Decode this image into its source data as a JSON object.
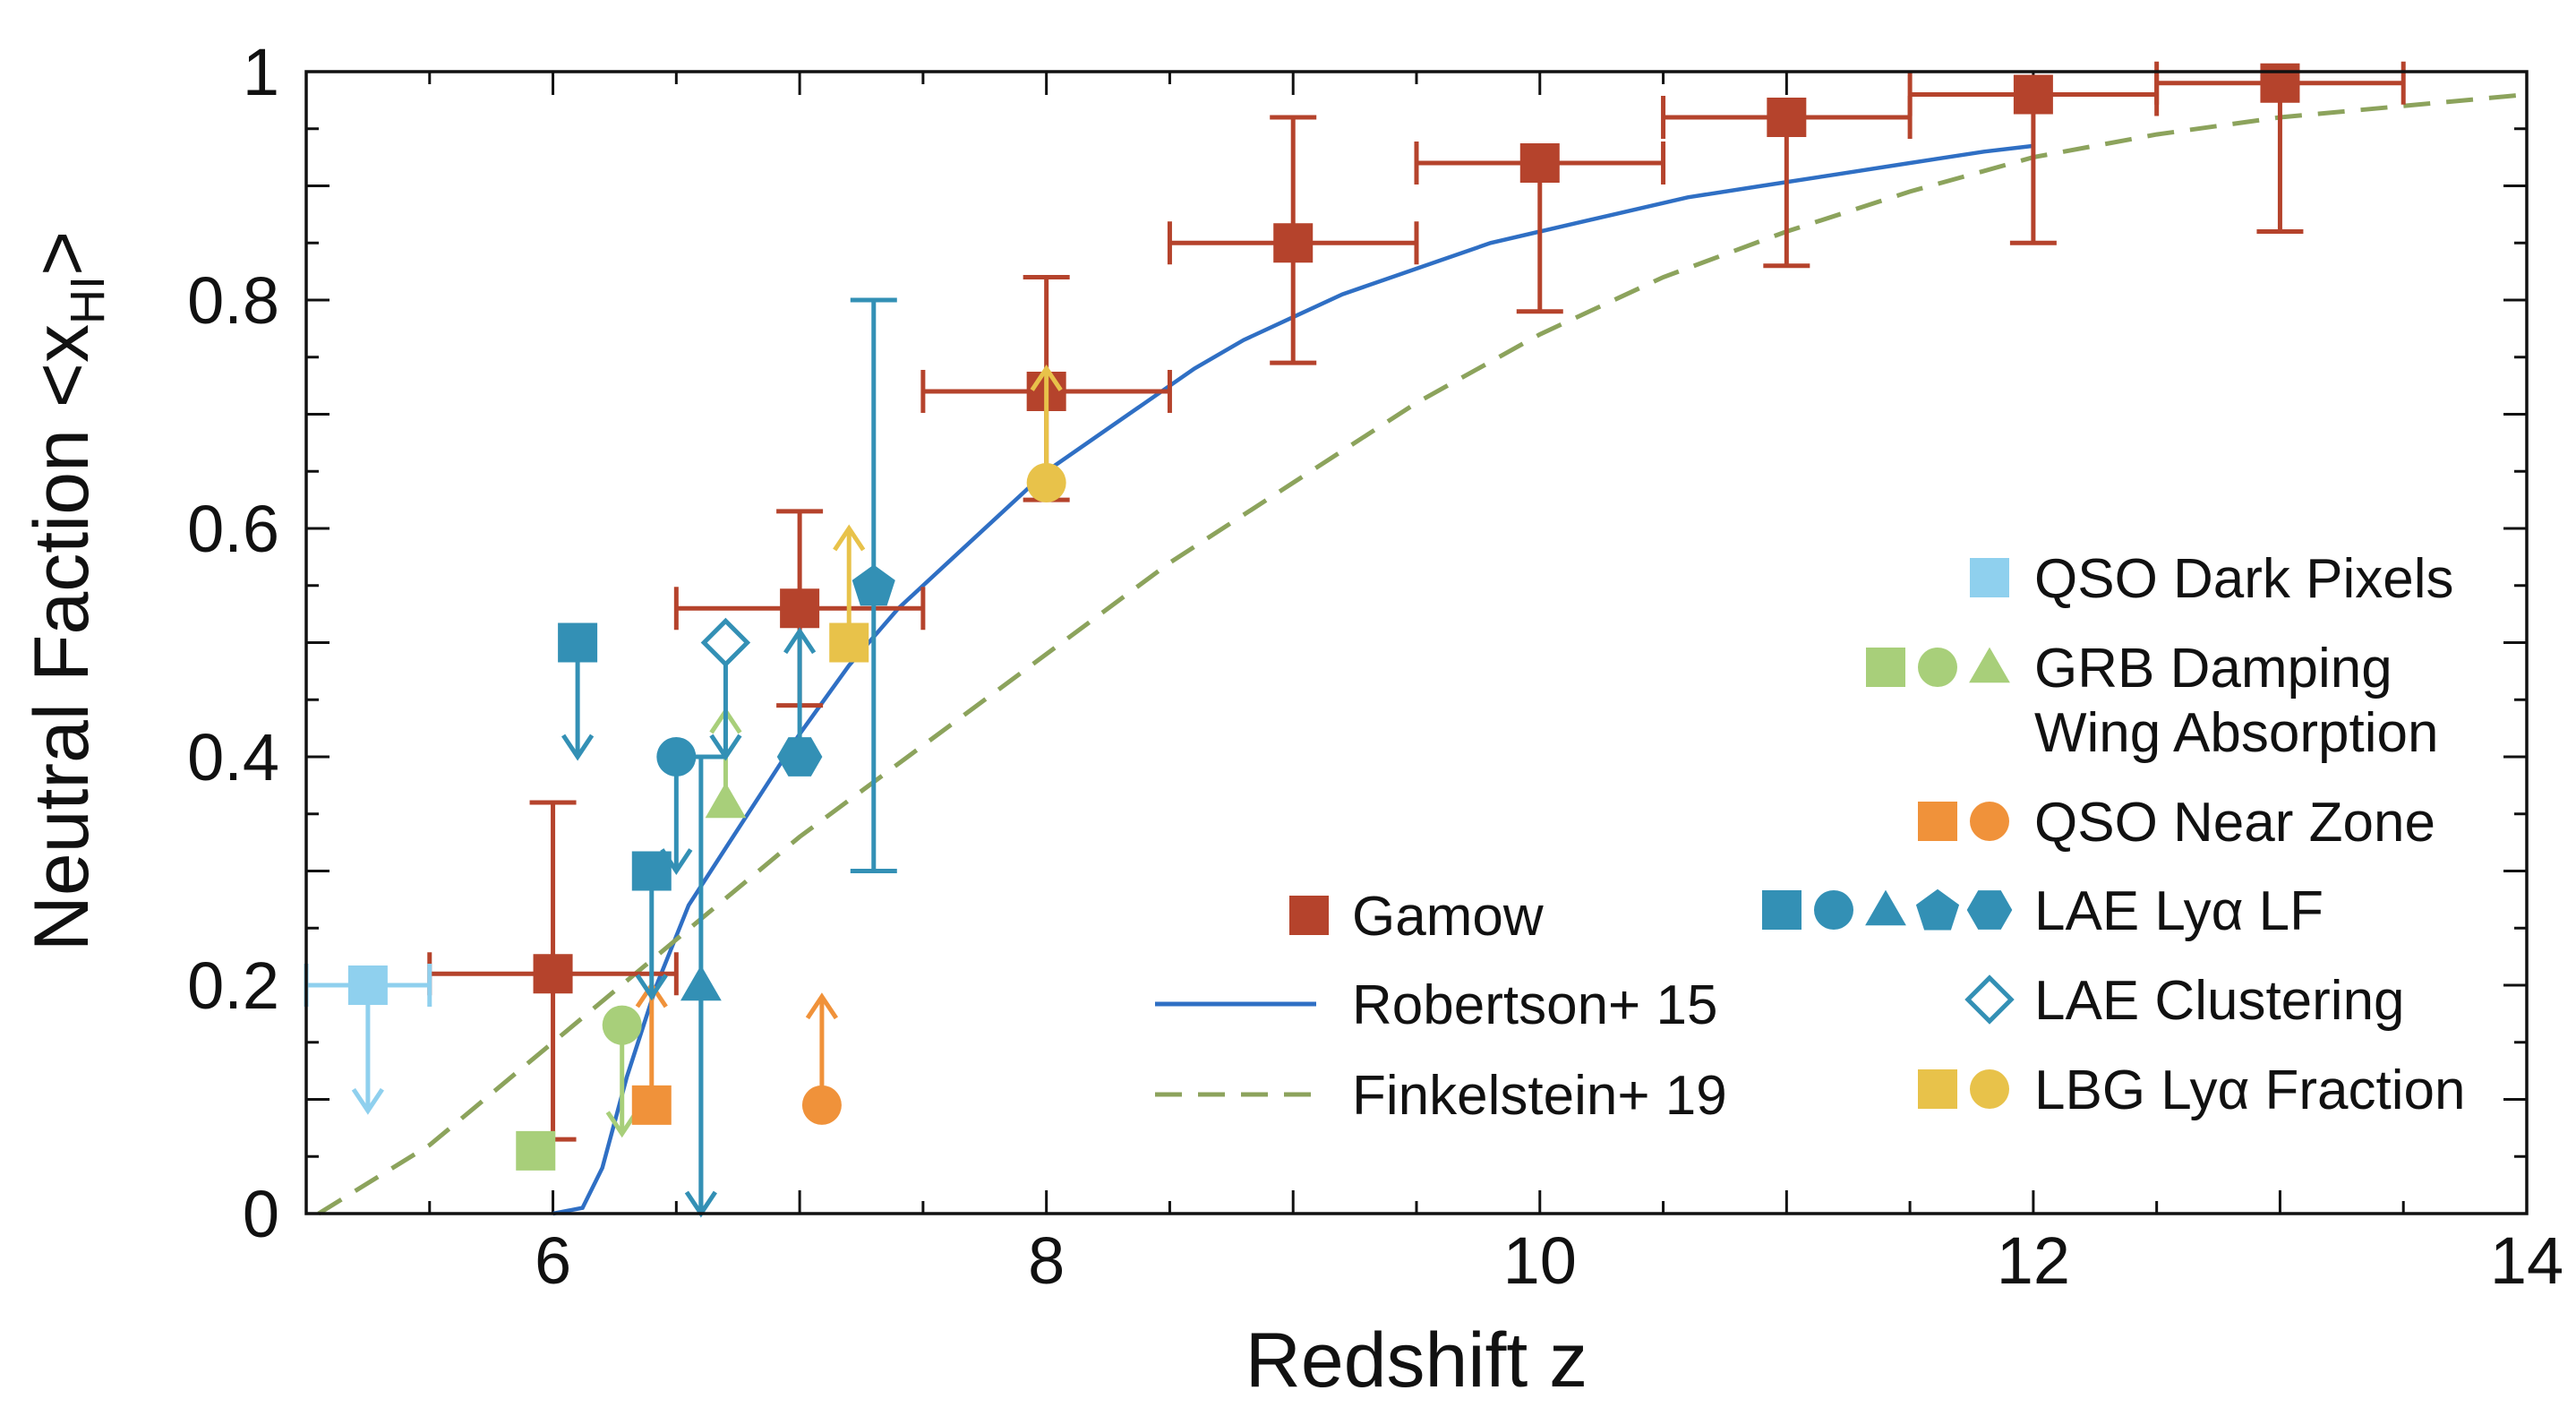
{
  "chart_data": {
    "type": "scatter",
    "title": "",
    "xlabel": "Redshift z",
    "ylabel": "Neutral Faction <x",
    "ylabel_subscript": "HI",
    "ylabel_close": ">",
    "xlim": [
      5,
      14
    ],
    "ylim": [
      0,
      1
    ],
    "xticks": [
      6,
      8,
      10,
      12,
      14
    ],
    "yticks": [
      0,
      0.2,
      0.4,
      0.6,
      0.8,
      1
    ],
    "ytick_labels": [
      "0",
      "0.2",
      "0.4",
      "0.6",
      "0.8",
      "1"
    ],
    "legend_left": [
      {
        "name": "Gamow",
        "style": "square-marker",
        "color": "#b5432c"
      },
      {
        "name": "Robertson+ 15",
        "style": "solid-line",
        "color": "#2f6fc4"
      },
      {
        "name": "Finkelstein+ 19",
        "style": "dashed-line",
        "color": "#8ca35c"
      }
    ],
    "legend_right": [
      {
        "name": "QSO Dark Pixels",
        "color": "#8fd0ee",
        "markers": [
          "square"
        ]
      },
      {
        "name": "GRB Damping",
        "name2": "Wing Absorption",
        "color": "#a8cf7a",
        "markers": [
          "square",
          "circle",
          "triangle"
        ]
      },
      {
        "name": "QSO Near Zone",
        "color": "#f0923a",
        "markers": [
          "square",
          "circle"
        ]
      },
      {
        "name": "LAE Lyα LF",
        "color": "#3390b5",
        "markers": [
          "square",
          "circle",
          "triangle",
          "pentagon",
          "hexagon"
        ]
      },
      {
        "name": "LAE Clustering",
        "color": "#3390b5",
        "markers": [
          "open-diamond"
        ]
      },
      {
        "name": "LBG Lyα Fraction",
        "color": "#e8c24a",
        "markers": [
          "square",
          "circle"
        ]
      }
    ],
    "series": [
      {
        "name": "Gamow",
        "color": "#b5432c",
        "marker": "square",
        "points": [
          {
            "x": 6.0,
            "y": 0.21,
            "xerr": [
              5.5,
              6.5
            ],
            "yerr": [
              0.065,
              0.36
            ]
          },
          {
            "x": 7.0,
            "y": 0.53,
            "xerr": [
              6.5,
              7.5
            ],
            "yerr": [
              0.445,
              0.615
            ]
          },
          {
            "x": 8.0,
            "y": 0.72,
            "xerr": [
              7.5,
              8.5
            ],
            "yerr": [
              0.625,
              0.82
            ]
          },
          {
            "x": 9.0,
            "y": 0.85,
            "xerr": [
              8.5,
              9.5
            ],
            "yerr": [
              0.745,
              0.96
            ]
          },
          {
            "x": 10.0,
            "y": 0.92,
            "xerr": [
              9.5,
              10.5
            ],
            "yerr": [
              0.79,
              0.92
            ]
          },
          {
            "x": 11.0,
            "y": 0.96,
            "xerr": [
              10.5,
              11.5
            ],
            "yerr": [
              0.83,
              0.96
            ]
          },
          {
            "x": 12.0,
            "y": 0.98,
            "xerr": [
              11.5,
              12.5
            ],
            "yerr": [
              0.85,
              0.98
            ]
          },
          {
            "x": 13.0,
            "y": 0.99,
            "xerr": [
              12.5,
              13.5
            ],
            "yerr": [
              0.86,
              0.99
            ]
          }
        ]
      },
      {
        "name": "Robertson+ 15",
        "color": "#2f6fc4",
        "style": "solid",
        "x": [
          6.0,
          6.12,
          6.2,
          6.3,
          6.42,
          6.55,
          6.7,
          6.85,
          7.0,
          7.2,
          7.4,
          7.6,
          7.8,
          8.0,
          8.2,
          8.4,
          8.6,
          8.8,
          9.0,
          9.2,
          9.4,
          9.6,
          9.8,
          10.0,
          10.3,
          10.6,
          10.9,
          11.2,
          11.5,
          11.8,
          12.0
        ],
        "y": [
          0.0,
          0.005,
          0.04,
          0.12,
          0.2,
          0.27,
          0.32,
          0.37,
          0.42,
          0.48,
          0.53,
          0.57,
          0.61,
          0.65,
          0.68,
          0.71,
          0.74,
          0.765,
          0.785,
          0.805,
          0.82,
          0.835,
          0.85,
          0.86,
          0.875,
          0.89,
          0.9,
          0.91,
          0.92,
          0.93,
          0.935
        ]
      },
      {
        "name": "Finkelstein+ 19",
        "color": "#8ca35c",
        "style": "dashed",
        "x": [
          5.05,
          5.5,
          6.0,
          6.5,
          7.0,
          7.5,
          8.0,
          8.5,
          9.0,
          9.5,
          10.0,
          10.5,
          11.0,
          11.5,
          12.0,
          12.5,
          13.0,
          13.5,
          14.0
        ],
        "y": [
          0.0,
          0.06,
          0.15,
          0.24,
          0.33,
          0.41,
          0.49,
          0.57,
          0.64,
          0.71,
          0.77,
          0.82,
          0.86,
          0.895,
          0.925,
          0.945,
          0.96,
          0.97,
          0.98
        ]
      },
      {
        "name": "QSO Dark Pixels",
        "color": "#8fd0ee",
        "marker": "square",
        "points": [
          {
            "x": 5.25,
            "y": 0.2,
            "xerr": [
              5.0,
              5.5
            ],
            "arrow": "down",
            "arrow_to": 0.09
          }
        ]
      },
      {
        "name": "GRB Damping Wing Absorption",
        "color": "#a8cf7a",
        "points": [
          {
            "marker": "square",
            "x": 5.93,
            "y": 0.055
          },
          {
            "marker": "circle",
            "x": 6.28,
            "y": 0.165,
            "arrow": "down",
            "arrow_to": 0.07
          },
          {
            "marker": "triangle",
            "x": 6.7,
            "y": 0.36,
            "arrow": "up",
            "arrow_to": 0.44
          }
        ]
      },
      {
        "name": "QSO Near Zone",
        "color": "#f0923a",
        "points": [
          {
            "marker": "square",
            "x": 6.4,
            "y": 0.095,
            "arrow": "up",
            "arrow_to": 0.2
          },
          {
            "marker": "circle",
            "x": 7.09,
            "y": 0.095,
            "arrow": "up",
            "arrow_to": 0.19
          }
        ]
      },
      {
        "name": "LAE Lyα LF",
        "color": "#3390b5",
        "points": [
          {
            "marker": "square",
            "x": 6.1,
            "y": 0.5,
            "arrow": "down",
            "arrow_to": 0.4
          },
          {
            "marker": "square",
            "x": 6.4,
            "y": 0.3,
            "arrow": "down",
            "arrow_to": 0.19
          },
          {
            "marker": "circle",
            "x": 6.5,
            "y": 0.4,
            "arrow": "down",
            "arrow_to": 0.3
          },
          {
            "marker": "triangle",
            "x": 6.6,
            "y": 0.2,
            "yerr": [
              0.0,
              0.4
            ],
            "arrow": "down",
            "arrow_to": 0.0
          },
          {
            "marker": "hexagon",
            "x": 7.0,
            "y": 0.4,
            "arrow": "up",
            "arrow_to": 0.51
          },
          {
            "marker": "pentagon",
            "x": 7.3,
            "y": 0.55,
            "yerr": [
              0.3,
              0.8
            ]
          }
        ]
      },
      {
        "name": "LAE Clustering",
        "color": "#3390b5",
        "points": [
          {
            "marker": "open-diamond",
            "x": 6.7,
            "y": 0.5,
            "arrow": "down",
            "arrow_to": 0.4
          }
        ]
      },
      {
        "name": "LBG Lyα Fraction",
        "color": "#e8c24a",
        "points": [
          {
            "marker": "square",
            "x": 7.2,
            "y": 0.5,
            "arrow": "up",
            "arrow_to": 0.6
          },
          {
            "marker": "circle",
            "x": 8.0,
            "y": 0.64,
            "arrow": "up",
            "arrow_to": 0.74
          }
        ]
      }
    ]
  }
}
